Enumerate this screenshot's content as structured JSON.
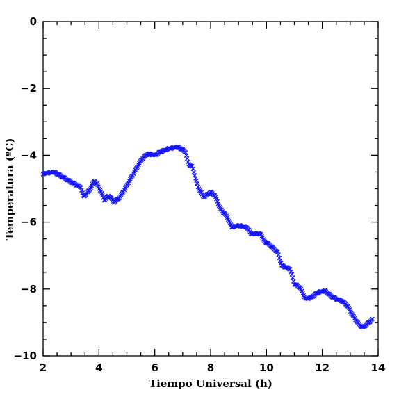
{
  "chart_data": {
    "type": "scatter",
    "xlabel": "Tiempo Universal (h)",
    "ylabel": "Temperatura (ºC)",
    "xlim": [
      2,
      14
    ],
    "ylim": [
      -10,
      0
    ],
    "x_ticks": [
      2,
      4,
      6,
      8,
      10,
      12,
      14
    ],
    "y_ticks": [
      0,
      -2,
      -4,
      -6,
      -8,
      -10
    ],
    "x_minor_step": 0.5,
    "y_minor_step": 0.5,
    "marker": "cross",
    "marker_color": "#1515ff",
    "series": [
      {
        "anchors": [
          [
            2.0,
            -4.55
          ],
          [
            2.4,
            -4.5
          ],
          [
            2.7,
            -4.65
          ],
          [
            3.0,
            -4.8
          ],
          [
            3.35,
            -4.95
          ],
          [
            3.45,
            -5.25
          ],
          [
            3.65,
            -5.05
          ],
          [
            3.85,
            -4.75
          ],
          [
            4.05,
            -5.05
          ],
          [
            4.2,
            -5.35
          ],
          [
            4.35,
            -5.2
          ],
          [
            4.55,
            -5.4
          ],
          [
            4.75,
            -5.25
          ],
          [
            5.0,
            -4.9
          ],
          [
            5.3,
            -4.45
          ],
          [
            5.55,
            -4.1
          ],
          [
            5.75,
            -3.95
          ],
          [
            6.0,
            -4.0
          ],
          [
            6.2,
            -3.9
          ],
          [
            6.5,
            -3.8
          ],
          [
            6.85,
            -3.75
          ],
          [
            7.1,
            -3.9
          ],
          [
            7.2,
            -4.25
          ],
          [
            7.35,
            -4.35
          ],
          [
            7.55,
            -4.95
          ],
          [
            7.75,
            -5.25
          ],
          [
            8.0,
            -5.1
          ],
          [
            8.15,
            -5.2
          ],
          [
            8.35,
            -5.6
          ],
          [
            8.6,
            -5.85
          ],
          [
            8.75,
            -6.15
          ],
          [
            9.0,
            -6.1
          ],
          [
            9.3,
            -6.15
          ],
          [
            9.45,
            -6.35
          ],
          [
            9.8,
            -6.35
          ],
          [
            9.9,
            -6.55
          ],
          [
            10.15,
            -6.7
          ],
          [
            10.4,
            -6.9
          ],
          [
            10.55,
            -7.3
          ],
          [
            10.7,
            -7.35
          ],
          [
            10.85,
            -7.4
          ],
          [
            11.0,
            -7.85
          ],
          [
            11.2,
            -7.95
          ],
          [
            11.4,
            -8.3
          ],
          [
            11.6,
            -8.25
          ],
          [
            11.85,
            -8.1
          ],
          [
            12.1,
            -8.05
          ],
          [
            12.3,
            -8.2
          ],
          [
            12.5,
            -8.3
          ],
          [
            12.7,
            -8.35
          ],
          [
            12.9,
            -8.5
          ],
          [
            13.1,
            -8.8
          ],
          [
            13.3,
            -9.05
          ],
          [
            13.45,
            -9.15
          ],
          [
            13.6,
            -9.05
          ],
          [
            13.8,
            -8.9
          ]
        ]
      }
    ]
  }
}
